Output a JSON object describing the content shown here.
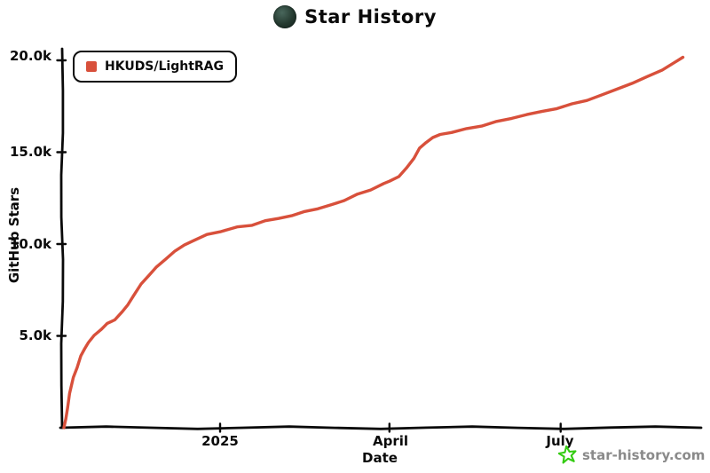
{
  "header": {
    "title": "Star History"
  },
  "legend": {
    "items": [
      {
        "label": "HKUDS/LightRAG",
        "color": "#d8503b"
      }
    ]
  },
  "watermark": {
    "text": "star-history.com",
    "star_color": "#34cc12",
    "text_color": "#8a8a8a"
  },
  "chart_data": {
    "type": "line",
    "title": "Star History",
    "xlabel": "Date",
    "ylabel": "GitHub Stars",
    "grid": false,
    "legend_position": "top-left",
    "ylim": [
      0,
      20650
    ],
    "x_range": [
      "2024-10-10",
      "2025-09-04"
    ],
    "yticks": [
      {
        "value": 5000,
        "label": "5.0k"
      },
      {
        "value": 10000,
        "label": "10.0k"
      },
      {
        "value": 15000,
        "label": "15.0k"
      },
      {
        "value": 20000,
        "label": "20.0k"
      }
    ],
    "xticks": [
      {
        "date": "2025-01-01",
        "label": "2025"
      },
      {
        "date": "2025-04-01",
        "label": "April"
      },
      {
        "date": "2025-07-01",
        "label": "July"
      }
    ],
    "series": [
      {
        "name": "HKUDS/LightRAG",
        "color": "#d8503b",
        "points": [
          {
            "date": "2024-10-10",
            "stars": 0
          },
          {
            "date": "2024-10-11",
            "stars": 500
          },
          {
            "date": "2024-10-12",
            "stars": 1100
          },
          {
            "date": "2024-10-13",
            "stars": 1900
          },
          {
            "date": "2024-10-15",
            "stars": 2700
          },
          {
            "date": "2024-10-17",
            "stars": 3300
          },
          {
            "date": "2024-10-19",
            "stars": 3900
          },
          {
            "date": "2024-10-21",
            "stars": 4300
          },
          {
            "date": "2024-10-23",
            "stars": 4650
          },
          {
            "date": "2024-10-26",
            "stars": 5000
          },
          {
            "date": "2024-10-30",
            "stars": 5400
          },
          {
            "date": "2024-11-02",
            "stars": 5650
          },
          {
            "date": "2024-11-06",
            "stars": 5900
          },
          {
            "date": "2024-11-10",
            "stars": 6300
          },
          {
            "date": "2024-11-13",
            "stars": 6700
          },
          {
            "date": "2024-11-16",
            "stars": 7200
          },
          {
            "date": "2024-11-20",
            "stars": 7800
          },
          {
            "date": "2024-11-24",
            "stars": 8300
          },
          {
            "date": "2024-11-28",
            "stars": 8700
          },
          {
            "date": "2024-12-03",
            "stars": 9200
          },
          {
            "date": "2024-12-08",
            "stars": 9600
          },
          {
            "date": "2024-12-13",
            "stars": 9950
          },
          {
            "date": "2024-12-18",
            "stars": 10200
          },
          {
            "date": "2024-12-25",
            "stars": 10500
          },
          {
            "date": "2025-01-01",
            "stars": 10700
          },
          {
            "date": "2025-01-10",
            "stars": 10900
          },
          {
            "date": "2025-01-18",
            "stars": 11050
          },
          {
            "date": "2025-01-25",
            "stars": 11250
          },
          {
            "date": "2025-02-01",
            "stars": 11400
          },
          {
            "date": "2025-02-08",
            "stars": 11550
          },
          {
            "date": "2025-02-15",
            "stars": 11750
          },
          {
            "date": "2025-02-22",
            "stars": 11950
          },
          {
            "date": "2025-03-01",
            "stars": 12100
          },
          {
            "date": "2025-03-08",
            "stars": 12400
          },
          {
            "date": "2025-03-15",
            "stars": 12700
          },
          {
            "date": "2025-03-22",
            "stars": 12950
          },
          {
            "date": "2025-03-29",
            "stars": 13300
          },
          {
            "date": "2025-04-01",
            "stars": 13400
          },
          {
            "date": "2025-04-06",
            "stars": 13700
          },
          {
            "date": "2025-04-10",
            "stars": 14100
          },
          {
            "date": "2025-04-14",
            "stars": 14700
          },
          {
            "date": "2025-04-17",
            "stars": 15200
          },
          {
            "date": "2025-04-20",
            "stars": 15500
          },
          {
            "date": "2025-04-24",
            "stars": 15800
          },
          {
            "date": "2025-04-28",
            "stars": 15950
          },
          {
            "date": "2025-05-04",
            "stars": 16100
          },
          {
            "date": "2025-05-12",
            "stars": 16250
          },
          {
            "date": "2025-05-20",
            "stars": 16450
          },
          {
            "date": "2025-05-28",
            "stars": 16650
          },
          {
            "date": "2025-06-05",
            "stars": 16850
          },
          {
            "date": "2025-06-13",
            "stars": 17050
          },
          {
            "date": "2025-06-21",
            "stars": 17200
          },
          {
            "date": "2025-06-29",
            "stars": 17400
          },
          {
            "date": "2025-07-07",
            "stars": 17600
          },
          {
            "date": "2025-07-15",
            "stars": 17850
          },
          {
            "date": "2025-07-23",
            "stars": 18100
          },
          {
            "date": "2025-07-31",
            "stars": 18450
          },
          {
            "date": "2025-08-08",
            "stars": 18750
          },
          {
            "date": "2025-08-16",
            "stars": 19100
          },
          {
            "date": "2025-08-24",
            "stars": 19500
          },
          {
            "date": "2025-09-01",
            "stars": 19950
          },
          {
            "date": "2025-09-04",
            "stars": 20200
          }
        ]
      }
    ]
  }
}
